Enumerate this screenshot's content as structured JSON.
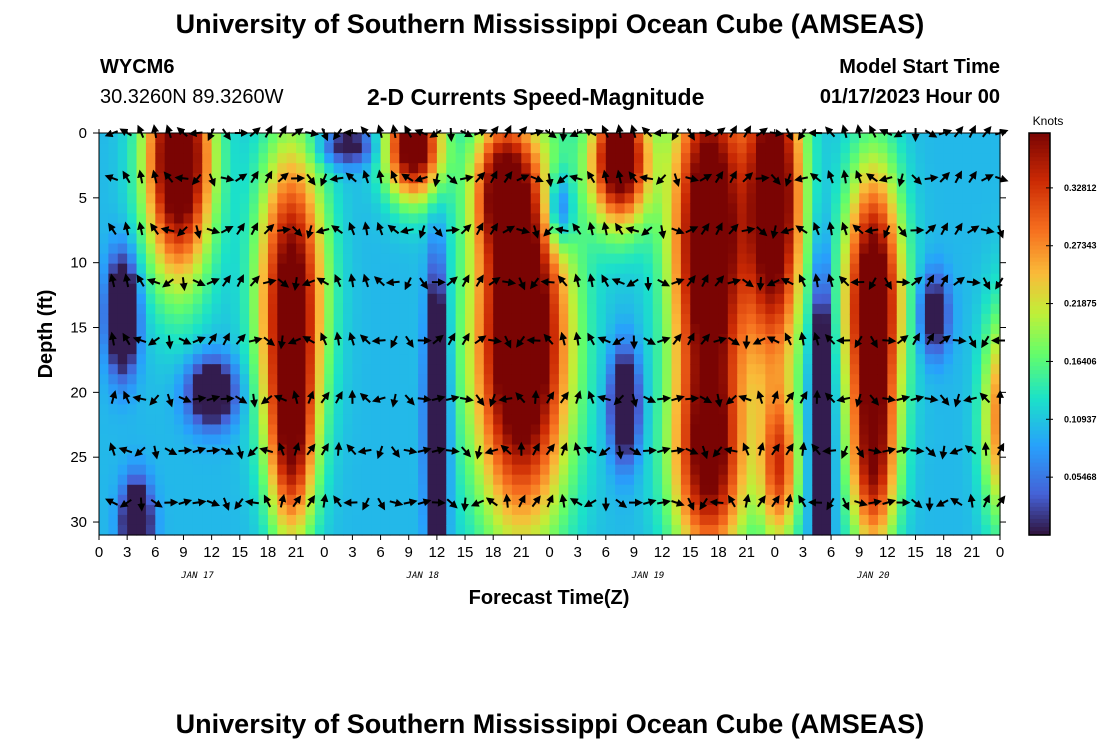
{
  "header": {
    "title": "University of Southern Mississippi Ocean Cube (AMSEAS)",
    "station_id": "WYCM6",
    "station_coords": "30.3260N  89.3260W",
    "plot_subtitle": "2-D Currents Speed-Magnitude",
    "model_start_label": "Model Start Time",
    "model_start_value": "01/17/2023 Hour 00"
  },
  "footer": {
    "title": "University of Southern Mississippi Ocean Cube (AMSEAS)"
  },
  "chart_data": {
    "type": "heatmap",
    "title": "2-D Currents Speed-Magnitude",
    "xlabel": "Forecast Time(Z)",
    "ylabel": "Depth (ft)",
    "x_range_hours": [
      0,
      96
    ],
    "x_tick_step_hours": 3,
    "x_tick_labels": [
      "0",
      "3",
      "6",
      "9",
      "12",
      "15",
      "18",
      "21",
      "0",
      "3",
      "6",
      "9",
      "12",
      "15",
      "18",
      "21",
      "0",
      "3",
      "6",
      "9",
      "12",
      "15",
      "18",
      "21",
      "0",
      "3",
      "6",
      "9",
      "12",
      "15",
      "18",
      "21",
      "0"
    ],
    "day_labels": [
      "JAN 17",
      "JAN 18",
      "JAN 19",
      "JAN 20"
    ],
    "day_label_hours": [
      10.5,
      34.5,
      58.5,
      82.5
    ],
    "ylim": [
      0,
      31
    ],
    "y_ticks": [
      0,
      5,
      10,
      15,
      20,
      25,
      30
    ],
    "y_tick_labels": [
      "0",
      "5",
      "10",
      "15",
      "20",
      "25",
      "30"
    ],
    "colorbar": {
      "label": "Knots",
      "range": [
        0,
        0.38
      ],
      "tick_values": [
        0.05468,
        0.10937,
        0.16406,
        0.21875,
        0.27343,
        0.32812
      ],
      "tick_labels": [
        "0.05468",
        "0.10937",
        "0.16406",
        "0.21875",
        "0.27343",
        "0.32812"
      ]
    },
    "speed_peaks": [
      {
        "hour": 8.5,
        "depth": 2,
        "hw": 3.5,
        "dw": 9,
        "v": 0.36
      },
      {
        "hour": 20.5,
        "depth": 12,
        "hw": 3.5,
        "dw": 11,
        "v": 0.3
      },
      {
        "hour": 20.5,
        "depth": 24,
        "hw": 2.5,
        "dw": 8,
        "v": 0.22
      },
      {
        "hour": 33.5,
        "depth": 1,
        "hw": 3,
        "dw": 4,
        "v": 0.33
      },
      {
        "hour": 45,
        "depth": 16,
        "hw": 5,
        "dw": 14,
        "v": 0.38
      },
      {
        "hour": 43,
        "depth": 4,
        "hw": 3,
        "dw": 5,
        "v": 0.2
      },
      {
        "hour": 55.5,
        "depth": 2,
        "hw": 3,
        "dw": 5,
        "v": 0.35
      },
      {
        "hour": 65,
        "depth": 8,
        "hw": 4,
        "dw": 14,
        "v": 0.36
      },
      {
        "hour": 65,
        "depth": 26,
        "hw": 4,
        "dw": 8,
        "v": 0.24
      },
      {
        "hour": 72,
        "depth": 5,
        "hw": 3,
        "dw": 13,
        "v": 0.34
      },
      {
        "hour": 72.5,
        "depth": 26,
        "hw": 2,
        "dw": 6,
        "v": 0.2
      },
      {
        "hour": 82.5,
        "depth": 13,
        "hw": 3,
        "dw": 10,
        "v": 0.35
      },
      {
        "hour": 82.5,
        "depth": 26,
        "hw": 2.5,
        "dw": 7,
        "v": 0.22
      },
      {
        "hour": 96,
        "depth": 22,
        "hw": 2,
        "dw": 8,
        "v": 0.18
      }
    ],
    "speed_lows": [
      {
        "hour": 2.5,
        "depth": 14,
        "hw": 1.5,
        "dw": 4,
        "v": -0.26
      },
      {
        "hour": 4,
        "depth": 30,
        "hw": 1.5,
        "dw": 3,
        "v": -0.22
      },
      {
        "hour": 12,
        "depth": 20,
        "hw": 2.5,
        "dw": 2.5,
        "v": -0.18
      },
      {
        "hour": 36,
        "depth": 22,
        "hw": 1,
        "dw": 10,
        "v": -0.32
      },
      {
        "hour": 56,
        "depth": 21,
        "hw": 1.5,
        "dw": 4,
        "v": -0.2
      },
      {
        "hour": 49,
        "depth": 6,
        "hw": 1.5,
        "dw": 3,
        "v": -0.14
      },
      {
        "hour": 77,
        "depth": 22,
        "hw": 1,
        "dw": 10,
        "v": -0.28
      },
      {
        "hour": 89,
        "depth": 14,
        "hw": 1.5,
        "dw": 3,
        "v": -0.14
      },
      {
        "hour": 26.5,
        "depth": 1,
        "hw": 3,
        "dw": 1.5,
        "v": -0.12
      }
    ],
    "vector_times_hours": [
      1.5,
      3,
      4.5,
      6,
      7.5,
      9,
      10.5,
      12,
      13.5,
      15,
      16.5,
      18,
      19.5,
      21,
      22.5,
      24,
      25.5,
      27,
      28.5,
      30,
      31.5,
      33,
      34.5,
      36,
      37.5,
      39,
      40.5,
      42,
      43.5,
      45,
      46.5,
      48,
      49.5,
      51,
      52.5,
      54,
      55.5,
      57,
      58.5,
      60,
      61.5,
      63,
      64.5,
      66,
      67.5,
      69,
      70.5,
      72,
      73.5,
      75,
      76.5,
      78,
      79.5,
      81,
      82.5,
      84,
      85.5,
      87,
      88.5,
      90,
      91.5,
      93,
      94.5,
      96
    ],
    "vector_depths_ft": [
      0,
      3.5,
      7.5,
      11.5,
      16,
      20.5,
      24.5,
      28.5
    ]
  }
}
